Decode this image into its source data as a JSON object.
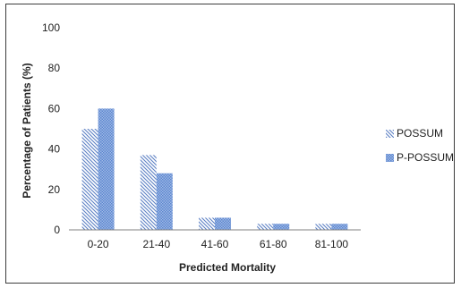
{
  "chart_data": {
    "type": "bar",
    "title": "",
    "xlabel": "Predicted Mortality",
    "ylabel": "Percentage of Patients (%)",
    "categories": [
      "0-20",
      "21-40",
      "41-60",
      "61-80",
      "81-100"
    ],
    "ylim": [
      0,
      100
    ],
    "yticks": [
      0,
      20,
      40,
      60,
      80,
      100
    ],
    "grid": false,
    "legend_position": "right",
    "series": [
      {
        "name": "POSSUM",
        "values": [
          50,
          37,
          6,
          3,
          3
        ],
        "pattern": "diagonal-lines",
        "color": "#5b7fc4"
      },
      {
        "name": "P-POSSUM",
        "values": [
          60,
          28,
          6,
          3,
          3
        ],
        "pattern": "dotted-fill",
        "color": "#6f95d6"
      }
    ]
  }
}
